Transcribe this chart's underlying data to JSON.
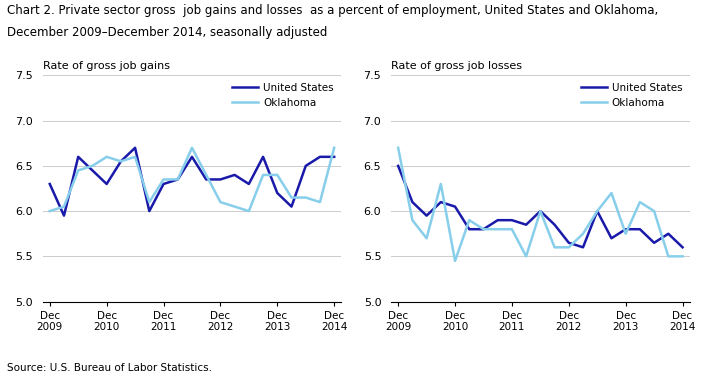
{
  "title_line1": "Chart 2. Private sector gross  job gains and losses  as a percent of employment, United States and Oklahoma,",
  "title_line2": "December 2009–December 2014, seasonally adjusted",
  "title_fontsize": 8.5,
  "source": "Source: U.S. Bureau of Labor Statistics.",
  "gains_ylabel": "Rate of gross job gains",
  "losses_ylabel": "Rate of gross job losses",
  "us_color": "#1a1aaa",
  "ok_color": "#87CEEB",
  "us_label": "United States",
  "ok_label": "Oklahoma",
  "ylim": [
    5.0,
    7.5
  ],
  "yticks": [
    5.0,
    5.5,
    6.0,
    6.5,
    7.0,
    7.5
  ],
  "x_labels": [
    "Dec\n2009",
    "Dec\n2010",
    "Dec\n2011",
    "Dec\n2012",
    "Dec\n2013",
    "Dec\n2014"
  ],
  "x_positions": [
    0,
    4,
    8,
    12,
    16,
    20
  ],
  "gains_us": [
    6.3,
    5.95,
    6.6,
    6.45,
    6.3,
    6.55,
    6.7,
    6.0,
    6.3,
    6.35,
    6.6,
    6.35,
    6.35,
    6.4,
    6.3,
    6.6,
    6.2,
    6.05,
    6.5,
    6.6,
    6.6
  ],
  "gains_ok": [
    6.0,
    6.05,
    6.45,
    6.5,
    6.6,
    6.55,
    6.6,
    6.1,
    6.35,
    6.35,
    6.7,
    6.4,
    6.1,
    6.05,
    6.0,
    6.4,
    6.4,
    6.15,
    6.15,
    6.1,
    6.7
  ],
  "losses_us": [
    6.5,
    6.1,
    5.95,
    6.1,
    6.05,
    5.8,
    5.8,
    5.9,
    5.9,
    5.85,
    6.0,
    5.85,
    5.65,
    5.6,
    6.0,
    5.7,
    5.8,
    5.8,
    5.65,
    5.75,
    5.6
  ],
  "losses_ok": [
    6.7,
    5.9,
    5.7,
    6.3,
    5.45,
    5.9,
    5.8,
    5.8,
    5.8,
    5.5,
    6.0,
    5.6,
    5.6,
    5.75,
    6.0,
    6.2,
    5.75,
    6.1,
    6.0,
    5.5,
    5.5
  ]
}
